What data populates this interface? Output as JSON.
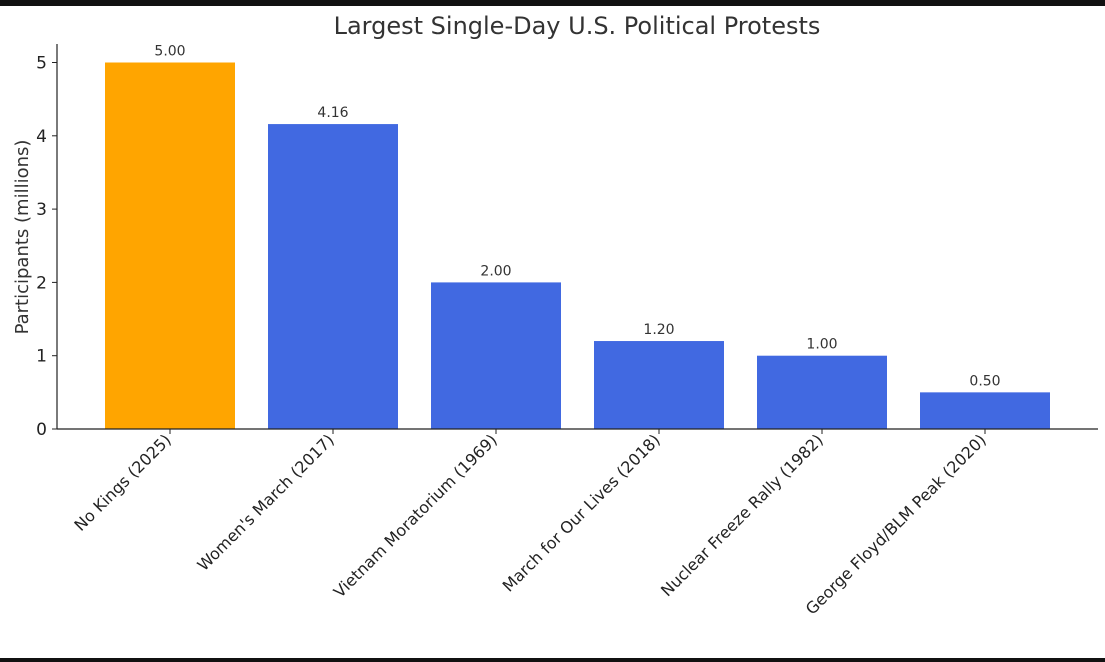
{
  "chart_data": {
    "type": "bar",
    "title": "Largest Single-Day U.S. Political Protests",
    "xlabel": "",
    "ylabel": "Participants (millions)",
    "ylim": [
      0,
      5.25
    ],
    "yticks": [
      "0",
      "1",
      "2",
      "3",
      "4",
      "5"
    ],
    "categories": [
      "No Kings (2025)",
      "Women's March (2017)",
      "Vietnam Moratorium (1969)",
      "March for Our Lives (2018)",
      "Nuclear Freeze Rally (1982)",
      "George Floyd/BLM Peak (2020)"
    ],
    "values": [
      5.0,
      4.16,
      2.0,
      1.2,
      1.0,
      0.5
    ],
    "value_labels": [
      "5.00",
      "4.16",
      "2.00",
      "1.20",
      "1.00",
      "0.50"
    ],
    "colors": [
      "#FFA500",
      "#4169E1",
      "#4169E1",
      "#4169E1",
      "#4169E1",
      "#4169E1"
    ],
    "grid": false,
    "legend": "none"
  }
}
